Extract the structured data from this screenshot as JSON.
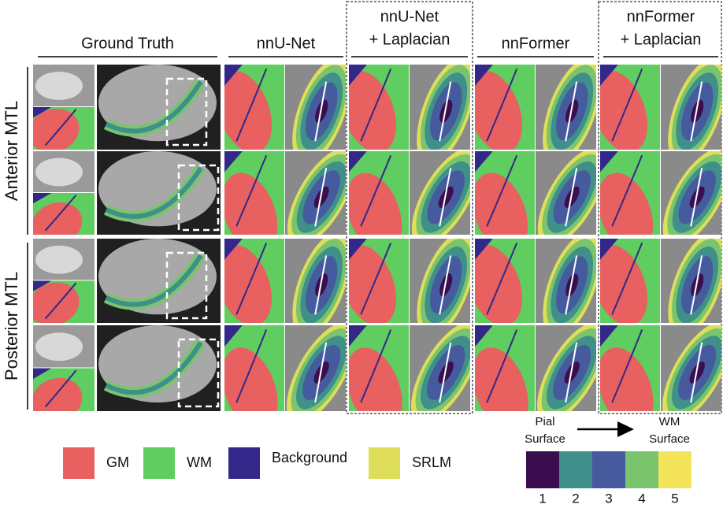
{
  "columns": [
    [
      "Ground Truth"
    ],
    [
      "nnU-Net"
    ],
    [
      "nnU-Net",
      "+ Laplacian"
    ],
    [
      "nnFormer"
    ],
    [
      "nnFormer",
      "+ Laplacian"
    ]
  ],
  "rows": [
    "Anterior MTL",
    "Posterior MTL"
  ],
  "legend": [
    {
      "label": "GM",
      "color": "#e8605f"
    },
    {
      "label": "WM",
      "color": "#5fcd5f"
    },
    {
      "label": "Background",
      "color": "#33288a"
    },
    {
      "label": "SRLM",
      "color": "#dede5a"
    }
  ],
  "colorbar": {
    "start": [
      "Pial",
      "Surface"
    ],
    "end": [
      "WM",
      "Surface"
    ],
    "ticks": [
      {
        "label": "1",
        "color": "#3b0f4f"
      },
      {
        "label": "2",
        "color": "#3f8f8a"
      },
      {
        "label": "3",
        "color": "#465a9e"
      },
      {
        "label": "4",
        "color": "#7ac46e"
      },
      {
        "label": "5",
        "color": "#f4e45a"
      }
    ]
  }
}
